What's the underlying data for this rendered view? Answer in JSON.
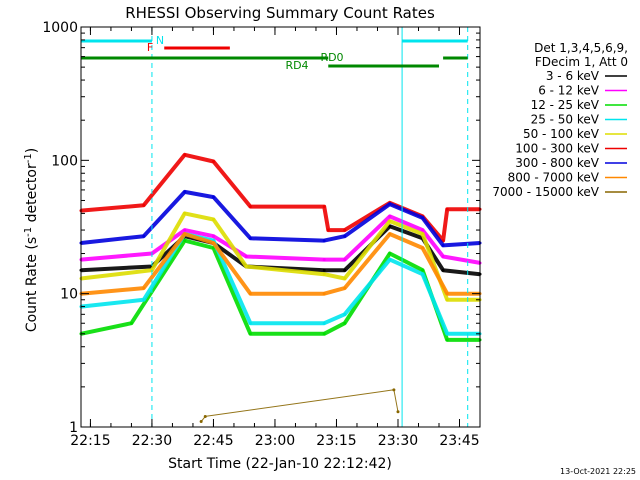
{
  "chart_data": {
    "type": "line",
    "title": "RHESSI Observing Summary Count Rates",
    "xlabel": "Start Time (22-Jan-10 22:12:42)",
    "ylabel": "Count Rate (s",
    "ylabel_sup": "-1",
    "ylabel_tail": " detector",
    "ylabel_close": ")",
    "y_scale": "log",
    "ylim": [
      1,
      1000
    ],
    "xlim": [
      "22:12:42",
      "23:50:00"
    ],
    "y_tick_labels": [
      "1",
      "10",
      "100",
      "1000"
    ],
    "x_tick_labels": [
      "22:15",
      "22:30",
      "22:45",
      "23:00",
      "23:15",
      "23:30",
      "23:45"
    ],
    "legend_header": [
      "Det 1,3,4,5,6,9,",
      "FDecim 1, Att 0"
    ],
    "legend_placement": "right",
    "footer_date": "13-Oct-2021 22:25",
    "series": [
      {
        "name": "3 - 6 keV",
        "color": "#000000",
        "points": [
          [
            "22:12:42",
            15
          ],
          [
            "22:30",
            16
          ],
          [
            "22:38",
            27
          ],
          [
            "22:45",
            24
          ],
          [
            "22:53",
            16
          ],
          [
            "23:12",
            15
          ],
          [
            "23:17",
            15
          ],
          [
            "23:28",
            32
          ],
          [
            "23:36",
            26
          ],
          [
            "23:41",
            15
          ],
          [
            "23:50",
            14
          ]
        ]
      },
      {
        "name": "6 - 12 keV",
        "color": "#ff00ff",
        "points": [
          [
            "22:12:42",
            18
          ],
          [
            "22:30",
            20
          ],
          [
            "22:38",
            30
          ],
          [
            "22:45",
            27
          ],
          [
            "22:53",
            19
          ],
          [
            "23:12",
            18
          ],
          [
            "23:17",
            18
          ],
          [
            "23:28",
            38
          ],
          [
            "23:36",
            30
          ],
          [
            "23:41",
            19
          ],
          [
            "23:50",
            17
          ]
        ]
      },
      {
        "name": "12 - 25 keV",
        "color": "#00dd00",
        "points": [
          [
            "22:12:42",
            5
          ],
          [
            "22:25",
            6
          ],
          [
            "22:38",
            25
          ],
          [
            "22:45",
            22
          ],
          [
            "22:54",
            5
          ],
          [
            "23:12",
            5
          ],
          [
            "23:17",
            6
          ],
          [
            "23:28",
            20
          ],
          [
            "23:36",
            15
          ],
          [
            "23:42",
            4.5
          ],
          [
            "23:50",
            4.5
          ]
        ]
      },
      {
        "name": "25 - 50 keV",
        "color": "#00e5ee",
        "points": [
          [
            "22:12:42",
            8
          ],
          [
            "22:28",
            9
          ],
          [
            "22:38",
            28
          ],
          [
            "22:45",
            25
          ],
          [
            "22:54",
            6
          ],
          [
            "23:12",
            6
          ],
          [
            "23:17",
            7
          ],
          [
            "23:28",
            18
          ],
          [
            "23:36",
            14
          ],
          [
            "23:42",
            5
          ],
          [
            "23:50",
            5
          ]
        ]
      },
      {
        "name": "50 - 100 keV",
        "color": "#dddd00",
        "points": [
          [
            "22:12:42",
            13
          ],
          [
            "22:30",
            15
          ],
          [
            "22:38",
            40
          ],
          [
            "22:45",
            36
          ],
          [
            "22:53",
            16
          ],
          [
            "23:12",
            14
          ],
          [
            "23:17",
            13
          ],
          [
            "23:28",
            35
          ],
          [
            "23:36",
            28
          ],
          [
            "23:42",
            9
          ],
          [
            "23:50",
            9
          ]
        ]
      },
      {
        "name": "100 - 300 keV",
        "color": "#ee0000",
        "points": [
          [
            "22:12:42",
            42
          ],
          [
            "22:28",
            46
          ],
          [
            "22:38",
            110
          ],
          [
            "22:45",
            98
          ],
          [
            "22:54",
            45
          ],
          [
            "23:12",
            45
          ],
          [
            "23:13",
            30
          ],
          [
            "23:17",
            30
          ],
          [
            "23:28",
            48
          ],
          [
            "23:36",
            38
          ],
          [
            "23:41",
            25
          ],
          [
            "23:42",
            43
          ],
          [
            "23:50",
            43
          ]
        ]
      },
      {
        "name": "300 - 800 keV",
        "color": "#0000dd",
        "points": [
          [
            "22:12:42",
            24
          ],
          [
            "22:28",
            27
          ],
          [
            "22:38",
            58
          ],
          [
            "22:45",
            53
          ],
          [
            "22:54",
            26
          ],
          [
            "23:12",
            25
          ],
          [
            "23:17",
            27
          ],
          [
            "23:28",
            47
          ],
          [
            "23:36",
            37
          ],
          [
            "23:41",
            23
          ],
          [
            "23:50",
            24
          ]
        ]
      },
      {
        "name": "800 - 7000 keV",
        "color": "#ff8800",
        "points": [
          [
            "22:12:42",
            10
          ],
          [
            "22:28",
            11
          ],
          [
            "22:38",
            28
          ],
          [
            "22:45",
            24
          ],
          [
            "22:54",
            10
          ],
          [
            "23:12",
            10
          ],
          [
            "23:17",
            11
          ],
          [
            "23:28",
            28
          ],
          [
            "23:36",
            22
          ],
          [
            "23:42",
            10
          ],
          [
            "23:50",
            10
          ]
        ]
      },
      {
        "name": "7000 - 15000 keV",
        "color": "#886600",
        "points": [
          [
            "22:42",
            1.1
          ],
          [
            "22:43",
            1.2
          ],
          [
            "23:29",
            1.9
          ],
          [
            "23:30",
            1.3
          ]
        ]
      }
    ],
    "annotations": {
      "N": {
        "label": "N",
        "color": "#00e5ee",
        "segments": [
          [
            "22:12:42",
            "22:30"
          ],
          [
            "23:31",
            "23:47"
          ]
        ]
      },
      "F": {
        "label": "F",
        "color": "#ee0000",
        "segments": [
          [
            "22:33",
            "22:49"
          ]
        ]
      },
      "RD0": {
        "label": "RD0",
        "color": "#008800",
        "segments": [
          [
            "22:12:42",
            "23:13"
          ],
          [
            "23:41",
            "23:47"
          ]
        ]
      },
      "RD4": {
        "label": "RD4",
        "color": "#008800",
        "segments": [
          [
            "23:13",
            "23:40"
          ]
        ]
      },
      "vlines_dashed": [
        "22:30",
        "23:47"
      ],
      "vlines_solid": [
        "22:12:42",
        "23:31"
      ]
    }
  }
}
